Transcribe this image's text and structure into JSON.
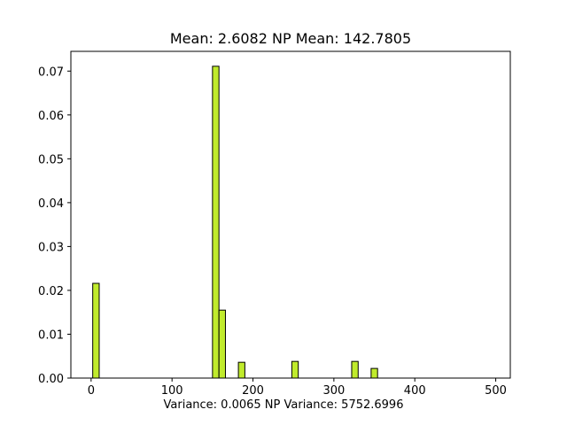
{
  "chart_data": {
    "type": "bar",
    "title": "Mean: 2.6082  NP Mean: 142.7805",
    "xlabel": "Variance: 0.0065  NP Variance: 5752.6996",
    "ylabel": "",
    "xlim": [
      -25,
      518
    ],
    "ylim": [
      0,
      0.0745
    ],
    "x_ticks": [
      0,
      100,
      200,
      300,
      400,
      500
    ],
    "y_ticks": [
      0.0,
      0.01,
      0.02,
      0.03,
      0.04,
      0.05,
      0.06,
      0.07
    ],
    "y_tick_labels": [
      "0.00",
      "0.01",
      "0.02",
      "0.03",
      "0.04",
      "0.05",
      "0.06",
      "0.07"
    ],
    "bar_color": "#c0eb2c",
    "edge_color": "#000000",
    "grid": false,
    "bins": [
      {
        "x0": 2,
        "x1": 10,
        "value": 0.0216
      },
      {
        "x0": 150,
        "x1": 158,
        "value": 0.0711
      },
      {
        "x0": 158,
        "x1": 166,
        "value": 0.0155
      },
      {
        "x0": 182,
        "x1": 190,
        "value": 0.0036
      },
      {
        "x0": 248,
        "x1": 256,
        "value": 0.0038
      },
      {
        "x0": 322,
        "x1": 330,
        "value": 0.0038
      },
      {
        "x0": 346,
        "x1": 354,
        "value": 0.0022
      }
    ]
  }
}
